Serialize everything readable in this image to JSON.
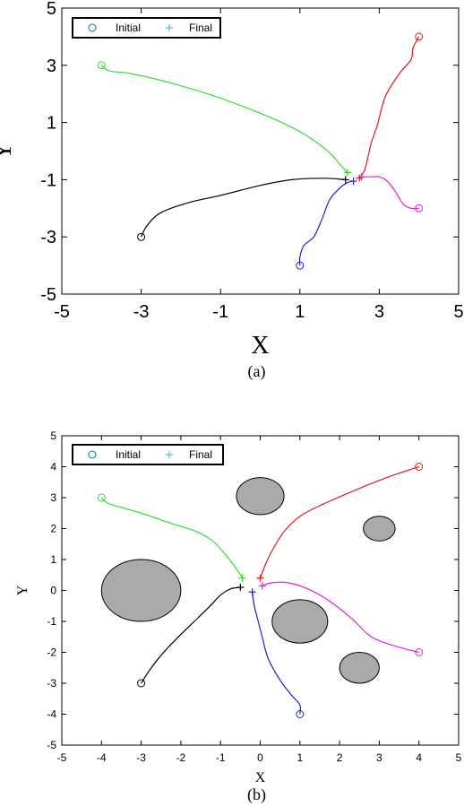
{
  "colors": {
    "red": "#e41a1c",
    "green": "#33dd33",
    "magenta": "#e020e0",
    "blue": "#1f1fdd",
    "black": "#000000",
    "marker_initial": "#0072bd",
    "marker_final": "#4db8e8",
    "obstacle_fill": "#aaaaaa"
  },
  "chart_data": [
    {
      "type": "line",
      "caption": "(a)",
      "xlabel": "X",
      "ylabel": "Y",
      "xlim": [
        -5,
        5
      ],
      "ylim": [
        -5,
        5
      ],
      "xticks": [
        -5,
        -3,
        -1,
        1,
        3,
        5
      ],
      "yticks": [
        -5,
        -3,
        -1,
        1,
        3,
        5
      ],
      "xtick_labels": [
        "-5",
        "-3",
        "-1",
        "1",
        "3",
        "5"
      ],
      "ytick_labels": [
        "-5",
        "-3",
        "-1",
        "1",
        "3",
        "5"
      ],
      "grid": false,
      "legend": {
        "position": "top-left",
        "entries": [
          "Initial",
          "Final"
        ]
      },
      "series": [
        {
          "color": "red",
          "initial": [
            4,
            4
          ],
          "final": [
            2.5,
            -0.95
          ],
          "x": [
            4,
            3.85,
            3.8,
            3.5,
            3.15,
            2.95,
            2.8,
            2.7,
            2.62,
            2.5
          ],
          "y": [
            4,
            3.6,
            3.2,
            2.7,
            1.9,
            0.9,
            0.3,
            -0.3,
            -0.7,
            -0.95
          ]
        },
        {
          "color": "green",
          "initial": [
            -4,
            3
          ],
          "final": [
            2.2,
            -0.75
          ],
          "x": [
            -4,
            -3.8,
            -3.3,
            -2.3,
            -1.0,
            0.3,
            1.1,
            1.7,
            2.0,
            2.2
          ],
          "y": [
            3,
            2.8,
            2.72,
            2.4,
            1.85,
            1.15,
            0.6,
            0.0,
            -0.45,
            -0.75
          ]
        },
        {
          "color": "magenta",
          "initial": [
            4,
            -2
          ],
          "final": [
            2.55,
            -0.9
          ],
          "x": [
            4,
            3.8,
            3.6,
            3.4,
            3.2,
            3.0,
            2.8,
            2.55
          ],
          "y": [
            -2,
            -2.0,
            -1.85,
            -1.4,
            -1.05,
            -0.9,
            -0.9,
            -0.9
          ]
        },
        {
          "color": "blue",
          "initial": [
            1,
            -4
          ],
          "final": [
            2.35,
            -1.05
          ],
          "x": [
            1,
            1.0,
            1.1,
            1.35,
            1.55,
            1.75,
            2.0,
            2.2,
            2.35
          ],
          "y": [
            -4,
            -3.7,
            -3.3,
            -3.0,
            -2.4,
            -1.7,
            -1.3,
            -1.1,
            -1.05
          ]
        },
        {
          "color": "black",
          "initial": [
            -3,
            -3
          ],
          "final": [
            2.15,
            -1.0
          ],
          "x": [
            -3,
            -2.85,
            -2.5,
            -1.8,
            -1.0,
            0.0,
            0.8,
            1.6,
            2.15
          ],
          "y": [
            -3,
            -2.6,
            -2.15,
            -1.8,
            -1.55,
            -1.2,
            -1.0,
            -0.95,
            -1.0
          ]
        }
      ]
    },
    {
      "type": "line",
      "caption": "(b)",
      "xlabel": "X",
      "ylabel": "Y",
      "xlim": [
        -5,
        5
      ],
      "ylim": [
        -5,
        5
      ],
      "xticks": [
        -5,
        -4,
        -3,
        -2,
        -1,
        0,
        1,
        2,
        3,
        4,
        5
      ],
      "yticks": [
        -5,
        -4,
        -3,
        -2,
        -1,
        0,
        1,
        2,
        3,
        4,
        5
      ],
      "xtick_labels": [
        "-5",
        "-4",
        "-3",
        "-2",
        "-1",
        "0",
        "1",
        "2",
        "3",
        "4",
        "5"
      ],
      "ytick_labels": [
        "-5",
        "-4",
        "-3",
        "-2",
        "-1",
        "0",
        "1",
        "2",
        "3",
        "4",
        "5"
      ],
      "grid": false,
      "legend": {
        "position": "top-left",
        "entries": [
          "Initial",
          "Final"
        ]
      },
      "obstacles": [
        {
          "cx": 0,
          "cy": 3.05,
          "rx": 0.6,
          "ry": 0.6
        },
        {
          "cx": -3,
          "cy": 0,
          "rx": 1.0,
          "ry": 1.0
        },
        {
          "cx": 1,
          "cy": -1,
          "rx": 0.7,
          "ry": 0.7
        },
        {
          "cx": 3,
          "cy": 2,
          "rx": 0.4,
          "ry": 0.4
        },
        {
          "cx": 2.5,
          "cy": -2.5,
          "rx": 0.5,
          "ry": 0.5
        }
      ],
      "series": [
        {
          "color": "red",
          "initial": [
            4,
            4
          ],
          "final": [
            0,
            0.4
          ],
          "x": [
            4,
            3.3,
            2.5,
            1.6,
            1.0,
            0.6,
            0.35,
            0.15,
            0.0
          ],
          "y": [
            4,
            3.7,
            3.3,
            2.8,
            2.4,
            1.9,
            1.4,
            0.9,
            0.4
          ]
        },
        {
          "color": "green",
          "initial": [
            -4,
            3
          ],
          "final": [
            -0.45,
            0.4
          ],
          "x": [
            -4,
            -3.8,
            -3.0,
            -2.2,
            -1.6,
            -1.2,
            -0.9,
            -0.6,
            -0.45
          ],
          "y": [
            3,
            2.8,
            2.5,
            2.15,
            1.9,
            1.6,
            1.2,
            0.7,
            0.4
          ]
        },
        {
          "color": "magenta",
          "initial": [
            4,
            -2
          ],
          "final": [
            0.05,
            0.15
          ],
          "x": [
            4,
            3.4,
            2.8,
            2.3,
            1.7,
            1.2,
            0.7,
            0.3,
            0.05
          ],
          "y": [
            -2,
            -1.8,
            -1.5,
            -0.9,
            -0.3,
            0.05,
            0.25,
            0.25,
            0.15
          ]
        },
        {
          "color": "blue",
          "initial": [
            1,
            -4
          ],
          "final": [
            -0.2,
            -0.05
          ],
          "x": [
            1,
            1.0,
            0.8,
            0.5,
            0.2,
            0.05,
            -0.05,
            -0.15,
            -0.2
          ],
          "y": [
            -4,
            -3.7,
            -3.4,
            -2.9,
            -2.2,
            -1.5,
            -1.0,
            -0.5,
            -0.05
          ]
        },
        {
          "color": "black",
          "initial": [
            -3,
            -3
          ],
          "final": [
            -0.5,
            0.1
          ],
          "x": [
            -3,
            -2.8,
            -2.5,
            -2.1,
            -1.7,
            -1.3,
            -1.0,
            -0.75,
            -0.5
          ],
          "y": [
            -3,
            -2.6,
            -2.1,
            -1.55,
            -1.05,
            -0.55,
            -0.15,
            0.05,
            0.1
          ]
        }
      ]
    }
  ]
}
